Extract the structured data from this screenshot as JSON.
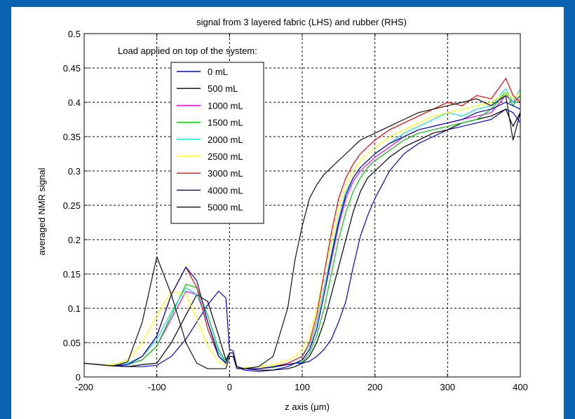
{
  "chart_data": {
    "type": "line",
    "title": "signal from 3 layered fabric (LHS) and rubber (RHS)",
    "xlabel": "z axis (µm)",
    "ylabel": "averaged NMR signal",
    "xlim": [
      -200,
      400
    ],
    "ylim": [
      0,
      0.5
    ],
    "xticks": [
      -200,
      -100,
      0,
      100,
      200,
      300,
      400
    ],
    "yticks": [
      0,
      0.05,
      0.1,
      0.15,
      0.2,
      0.25,
      0.3,
      0.35,
      0.4,
      0.45,
      0.5
    ],
    "xtick_labels": [
      "-200",
      "-100",
      "0",
      "100",
      "200",
      "300",
      "400"
    ],
    "ytick_labels": [
      "0",
      "0.05",
      "0.1",
      "0.15",
      "0.2",
      "0.25",
      "0.3",
      "0.35",
      "0.4",
      "0.45",
      "0.5"
    ],
    "grid": true,
    "legend_position": "top-left",
    "annotation": "Load applied on top of the system:",
    "series": [
      {
        "name": "0 mL",
        "color": "#0000ff",
        "x": [
          -200,
          -180,
          -160,
          -140,
          -120,
          -100,
          -80,
          -60,
          -45,
          -30,
          -15,
          -5,
          0,
          5,
          10,
          20,
          40,
          60,
          80,
          90,
          100,
          110,
          120,
          130,
          140,
          150,
          160,
          170,
          180,
          190,
          200,
          220,
          240,
          260,
          280,
          300,
          320,
          340,
          360,
          380,
          390,
          400
        ],
        "y": [
          0.02,
          0.018,
          0.017,
          0.015,
          0.015,
          0.017,
          0.03,
          0.055,
          0.08,
          0.105,
          0.125,
          0.115,
          0.04,
          0.038,
          0.015,
          0.01,
          0.008,
          0.01,
          0.015,
          0.02,
          0.02,
          0.023,
          0.03,
          0.04,
          0.055,
          0.08,
          0.11,
          0.16,
          0.205,
          0.235,
          0.26,
          0.3,
          0.325,
          0.34,
          0.35,
          0.36,
          0.365,
          0.37,
          0.375,
          0.39,
          0.385,
          0.37
        ]
      },
      {
        "name": "500 mL",
        "color": "#000000",
        "x": [
          -200,
          -180,
          -160,
          -140,
          -120,
          -100,
          -80,
          -60,
          -45,
          -30,
          -15,
          -5,
          0,
          5,
          10,
          20,
          40,
          60,
          80,
          90,
          100,
          110,
          120,
          130,
          140,
          150,
          160,
          170,
          180,
          190,
          200,
          220,
          240,
          260,
          280,
          300,
          320,
          340,
          360,
          380,
          390,
          400
        ],
        "y": [
          0.02,
          0.018,
          0.016,
          0.015,
          0.018,
          0.02,
          0.05,
          0.09,
          0.12,
          0.11,
          0.06,
          0.025,
          0.035,
          0.035,
          0.015,
          0.012,
          0.01,
          0.01,
          0.012,
          0.015,
          0.02,
          0.03,
          0.05,
          0.08,
          0.12,
          0.16,
          0.2,
          0.24,
          0.27,
          0.29,
          0.3,
          0.32,
          0.335,
          0.345,
          0.355,
          0.36,
          0.37,
          0.375,
          0.38,
          0.39,
          0.365,
          0.385
        ]
      },
      {
        "name": "1000 mL",
        "color": "#ff00ff",
        "x": [
          -200,
          -180,
          -160,
          -140,
          -120,
          -100,
          -80,
          -60,
          -45,
          -30,
          -15,
          -5,
          0,
          5,
          10,
          20,
          40,
          60,
          80,
          90,
          100,
          110,
          120,
          130,
          140,
          150,
          160,
          170,
          180,
          190,
          200,
          220,
          240,
          260,
          280,
          300,
          320,
          340,
          360,
          380,
          390,
          400
        ],
        "y": [
          0.02,
          0.018,
          0.016,
          0.018,
          0.025,
          0.045,
          0.085,
          0.125,
          0.12,
          0.08,
          0.035,
          0.02,
          0.035,
          0.035,
          0.015,
          0.012,
          0.012,
          0.014,
          0.018,
          0.02,
          0.025,
          0.04,
          0.07,
          0.12,
          0.17,
          0.22,
          0.26,
          0.285,
          0.3,
          0.31,
          0.32,
          0.335,
          0.35,
          0.36,
          0.365,
          0.37,
          0.375,
          0.38,
          0.385,
          0.41,
          0.4,
          0.41
        ]
      },
      {
        "name": "1500 mL",
        "color": "#00cc00",
        "x": [
          -200,
          -180,
          -160,
          -140,
          -120,
          -100,
          -80,
          -60,
          -45,
          -30,
          -15,
          -5,
          0,
          5,
          10,
          20,
          40,
          60,
          80,
          90,
          100,
          110,
          120,
          130,
          140,
          150,
          160,
          170,
          180,
          190,
          200,
          220,
          240,
          260,
          280,
          300,
          320,
          340,
          360,
          380,
          390,
          400
        ],
        "y": [
          0.02,
          0.018,
          0.016,
          0.018,
          0.025,
          0.045,
          0.09,
          0.135,
          0.13,
          0.09,
          0.04,
          0.022,
          0.035,
          0.035,
          0.015,
          0.012,
          0.012,
          0.014,
          0.018,
          0.02,
          0.022,
          0.035,
          0.06,
          0.1,
          0.15,
          0.2,
          0.24,
          0.27,
          0.29,
          0.305,
          0.315,
          0.33,
          0.345,
          0.355,
          0.36,
          0.365,
          0.37,
          0.375,
          0.39,
          0.415,
          0.395,
          0.41
        ]
      },
      {
        "name": "2000 mL",
        "color": "#00e5e5",
        "x": [
          -200,
          -180,
          -160,
          -140,
          -120,
          -100,
          -80,
          -60,
          -45,
          -30,
          -15,
          -5,
          0,
          5,
          10,
          20,
          40,
          60,
          80,
          90,
          100,
          110,
          120,
          130,
          140,
          150,
          160,
          170,
          180,
          190,
          200,
          220,
          240,
          260,
          280,
          300,
          320,
          340,
          360,
          380,
          390,
          400
        ],
        "y": [
          0.02,
          0.018,
          0.017,
          0.02,
          0.03,
          0.055,
          0.095,
          0.13,
          0.12,
          0.08,
          0.035,
          0.02,
          0.035,
          0.035,
          0.015,
          0.012,
          0.012,
          0.015,
          0.02,
          0.025,
          0.03,
          0.045,
          0.08,
          0.13,
          0.18,
          0.23,
          0.27,
          0.29,
          0.305,
          0.315,
          0.325,
          0.34,
          0.355,
          0.365,
          0.375,
          0.385,
          0.38,
          0.39,
          0.395,
          0.42,
          0.4,
          0.42
        ]
      },
      {
        "name": "2500 mL",
        "color": "#ffff00",
        "x": [
          -200,
          -180,
          -160,
          -140,
          -120,
          -100,
          -80,
          -60,
          -45,
          -30,
          -15,
          -5,
          0,
          5,
          10,
          20,
          40,
          60,
          80,
          90,
          100,
          110,
          120,
          130,
          140,
          150,
          160,
          170,
          180,
          190,
          200,
          220,
          240,
          260,
          280,
          300,
          320,
          340,
          360,
          380,
          390,
          400
        ],
        "y": [
          0.02,
          0.018,
          0.018,
          0.025,
          0.05,
          0.09,
          0.125,
          0.12,
          0.085,
          0.045,
          0.022,
          0.018,
          0.035,
          0.035,
          0.015,
          0.014,
          0.015,
          0.018,
          0.025,
          0.03,
          0.04,
          0.06,
          0.1,
          0.15,
          0.2,
          0.245,
          0.28,
          0.3,
          0.315,
          0.325,
          0.335,
          0.35,
          0.36,
          0.37,
          0.38,
          0.385,
          0.39,
          0.395,
          0.4,
          0.415,
          0.405,
          0.415
        ]
      },
      {
        "name": "3000 mL",
        "color": "#ff0000",
        "x": [
          -200,
          -180,
          -160,
          -140,
          -120,
          -100,
          -80,
          -60,
          -45,
          -30,
          -15,
          -5,
          0,
          5,
          10,
          20,
          40,
          60,
          80,
          90,
          100,
          110,
          120,
          130,
          140,
          150,
          160,
          170,
          180,
          190,
          200,
          220,
          240,
          260,
          280,
          300,
          320,
          340,
          360,
          380,
          390,
          400
        ],
        "y": [
          0.02,
          0.018,
          0.016,
          0.018,
          0.03,
          0.06,
          0.12,
          0.16,
          0.13,
          0.07,
          0.03,
          0.02,
          0.035,
          0.035,
          0.015,
          0.012,
          0.012,
          0.015,
          0.02,
          0.025,
          0.03,
          0.05,
          0.09,
          0.15,
          0.21,
          0.26,
          0.29,
          0.31,
          0.325,
          0.335,
          0.345,
          0.36,
          0.37,
          0.38,
          0.39,
          0.4,
          0.395,
          0.41,
          0.405,
          0.435,
          0.41,
          0.4
        ]
      },
      {
        "name": "4000 mL",
        "color": "#0000cc",
        "x": [
          -200,
          -180,
          -160,
          -140,
          -120,
          -100,
          -80,
          -60,
          -45,
          -30,
          -15,
          -5,
          0,
          5,
          10,
          20,
          40,
          60,
          80,
          90,
          100,
          110,
          120,
          130,
          140,
          150,
          160,
          170,
          180,
          190,
          200,
          220,
          240,
          260,
          280,
          300,
          320,
          340,
          360,
          380,
          390,
          400
        ],
        "y": [
          0.02,
          0.018,
          0.016,
          0.018,
          0.03,
          0.06,
          0.12,
          0.16,
          0.14,
          0.08,
          0.03,
          0.02,
          0.035,
          0.035,
          0.015,
          0.012,
          0.012,
          0.015,
          0.018,
          0.02,
          0.025,
          0.04,
          0.07,
          0.12,
          0.175,
          0.225,
          0.265,
          0.29,
          0.305,
          0.315,
          0.325,
          0.34,
          0.35,
          0.36,
          0.365,
          0.37,
          0.375,
          0.385,
          0.39,
          0.4,
          0.395,
          0.39
        ]
      },
      {
        "name": "5000 mL",
        "color": "#111111",
        "x": [
          -200,
          -180,
          -160,
          -140,
          -120,
          -100,
          -80,
          -60,
          -45,
          -30,
          -15,
          -5,
          0,
          5,
          10,
          20,
          40,
          60,
          80,
          90,
          100,
          110,
          120,
          130,
          140,
          150,
          160,
          170,
          180,
          190,
          200,
          220,
          240,
          260,
          280,
          300,
          320,
          340,
          360,
          380,
          390,
          400
        ],
        "y": [
          0.02,
          0.018,
          0.016,
          0.022,
          0.08,
          0.175,
          0.12,
          0.05,
          0.02,
          0.012,
          0.012,
          0.012,
          0.03,
          0.03,
          0.012,
          0.012,
          0.015,
          0.03,
          0.1,
          0.17,
          0.22,
          0.26,
          0.28,
          0.295,
          0.305,
          0.315,
          0.325,
          0.335,
          0.345,
          0.35,
          0.355,
          0.365,
          0.375,
          0.385,
          0.39,
          0.395,
          0.4,
          0.405,
          0.395,
          0.41,
          0.345,
          0.385
        ]
      }
    ]
  }
}
